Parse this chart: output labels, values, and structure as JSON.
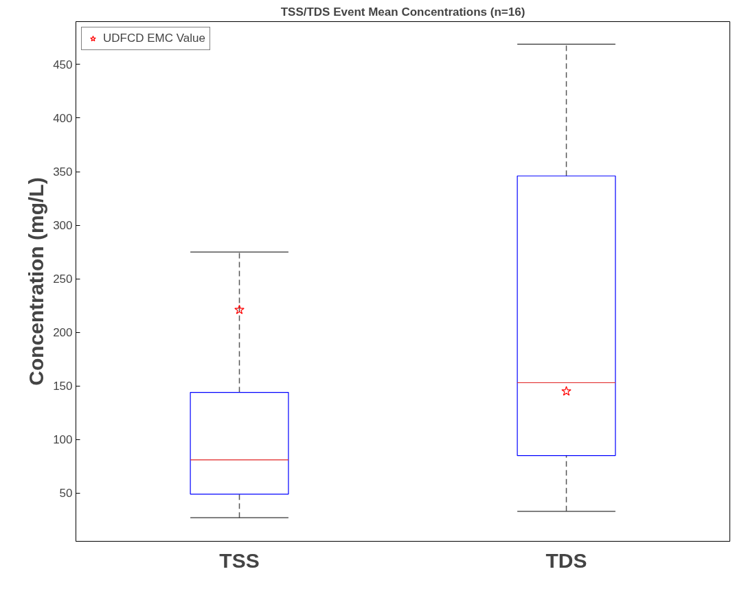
{
  "chart_data": {
    "type": "box",
    "title": "TSS/TDS Event Mean Concentrations (n=16)",
    "ylabel": "Concentration (mg/L)",
    "categories": [
      "TSS",
      "TDS"
    ],
    "series": [
      {
        "color": "#0000ff",
        "boxes": [
          {
            "low": 27,
            "q1": 49,
            "median": 81,
            "q3": 144,
            "high": 275
          },
          {
            "low": 33,
            "q1": 85,
            "median": 153,
            "q3": 346,
            "high": 469
          }
        ]
      },
      {
        "type": "scatter",
        "name": "UDFCD EMC Value",
        "color": "#ff0000",
        "marker": "star",
        "x": [
          "TSS",
          "TDS"
        ],
        "values": [
          221,
          145
        ]
      }
    ],
    "ylim": [
      5,
      490
    ],
    "yticks": [
      50,
      100,
      150,
      200,
      250,
      300,
      350,
      400,
      450
    ],
    "grid": false,
    "legend": "top left"
  }
}
